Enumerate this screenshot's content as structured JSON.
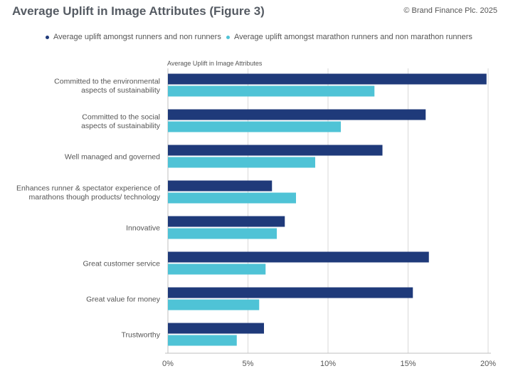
{
  "header": {
    "title": "Average Uplift in Image Attributes (Figure 3)",
    "copyright": "© Brand Finance Plc. 2025"
  },
  "colors": {
    "series1": "#1f3a7a",
    "series2": "#4fc3d6",
    "grid": "#d9d9d9"
  },
  "chart_data": {
    "type": "bar",
    "orientation": "horizontal",
    "title": "Average Uplift in Image Attributes",
    "categories": [
      [
        "Committed to the environmental",
        "aspects of sustainability"
      ],
      [
        "Committed to the social",
        "aspects of sustainability"
      ],
      [
        "Well managed and governed"
      ],
      [
        "Enhances runner & spectator experience of",
        "marathons though products/ technology"
      ],
      [
        "Innovative"
      ],
      [
        "Great customer service"
      ],
      [
        "Great value for money"
      ],
      [
        "Trustworthy"
      ]
    ],
    "series": [
      {
        "name": "Average uplift amongst runners and non runners",
        "values": [
          19.9,
          16.1,
          13.4,
          6.5,
          7.3,
          16.3,
          15.3,
          6.0
        ]
      },
      {
        "name": "Average uplift amongst marathon runners and non marathon runners",
        "values": [
          12.9,
          10.8,
          9.2,
          8.0,
          6.8,
          6.1,
          5.7,
          4.3
        ]
      }
    ],
    "xlim": [
      0,
      20
    ],
    "xticks": [
      "0%",
      "5%",
      "10%",
      "15%",
      "20%"
    ],
    "grid": true,
    "legend_position": "top"
  }
}
